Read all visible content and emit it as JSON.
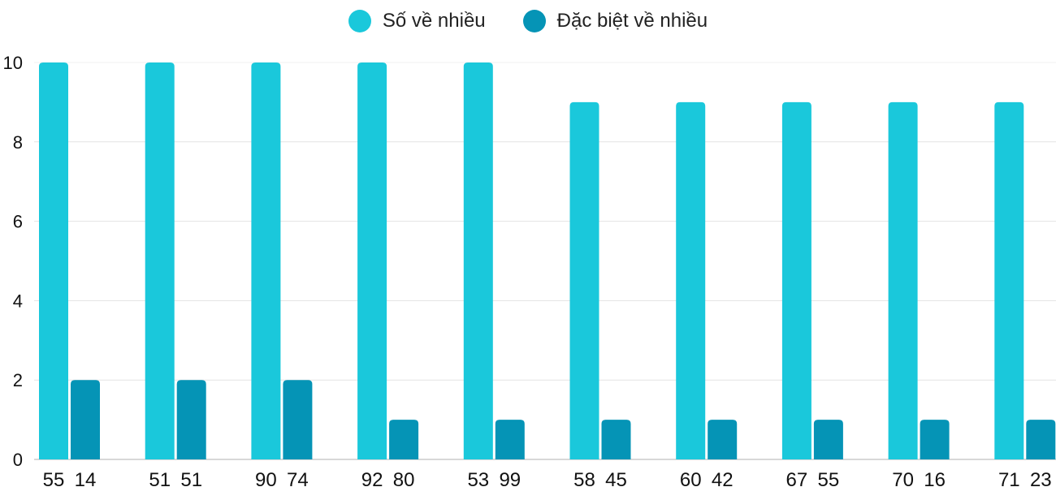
{
  "chart_data": {
    "type": "bar",
    "title": "",
    "xlabel": "",
    "ylabel": "",
    "ylim": [
      0,
      10
    ],
    "yticks": [
      0,
      2,
      4,
      6,
      8,
      10
    ],
    "grid": true,
    "legend_position": "top-center",
    "categories": [
      [
        "55",
        "14"
      ],
      [
        "51",
        "51"
      ],
      [
        "90",
        "74"
      ],
      [
        "92",
        "80"
      ],
      [
        "53",
        "99"
      ],
      [
        "58",
        "45"
      ],
      [
        "60",
        "42"
      ],
      [
        "67",
        "55"
      ],
      [
        "70",
        "16"
      ],
      [
        "71",
        "23"
      ]
    ],
    "series": [
      {
        "name": "Số về nhiều",
        "color": "#1ac8db",
        "values": [
          10,
          10,
          10,
          10,
          10,
          9,
          9,
          9,
          9,
          9
        ]
      },
      {
        "name": "Đặc biệt về nhiều",
        "color": "#0594b6",
        "values": [
          2,
          2,
          2,
          1,
          1,
          1,
          1,
          1,
          1,
          1
        ]
      }
    ]
  }
}
